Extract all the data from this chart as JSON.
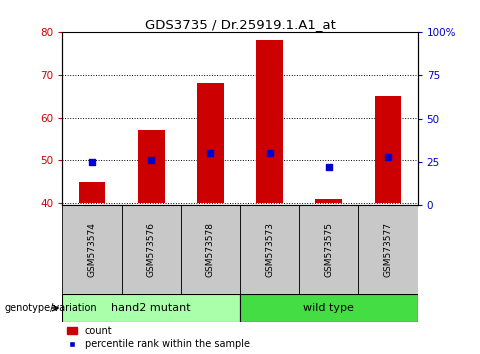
{
  "title": "GDS3735 / Dr.25919.1.A1_at",
  "categories": [
    "GSM573574",
    "GSM573576",
    "GSM573578",
    "GSM573573",
    "GSM573575",
    "GSM573577"
  ],
  "count_values": [
    45.0,
    57.0,
    68.0,
    78.0,
    41.0,
    65.0
  ],
  "percentile_values": [
    25.0,
    26.0,
    30.0,
    30.0,
    22.0,
    28.0
  ],
  "bar_baseline": 40.0,
  "ylim_left": [
    39.5,
    80
  ],
  "ylim_right": [
    0,
    100
  ],
  "left_yticks": [
    40,
    50,
    60,
    70,
    80
  ],
  "right_yticks": [
    0,
    25,
    50,
    75,
    100
  ],
  "right_yticklabels": [
    "0",
    "25",
    "50",
    "75",
    "100%"
  ],
  "bar_color": "#cc0000",
  "percentile_color": "#0000cc",
  "group1_label": "hand2 mutant",
  "group2_label": "wild type",
  "group1_color": "#aaffaa",
  "group2_color": "#44dd44",
  "group_label": "genotype/variation",
  "legend_count": "count",
  "legend_percentile": "percentile rank within the sample",
  "label_area_bg": "#c8c8c8",
  "bar_width": 0.45
}
